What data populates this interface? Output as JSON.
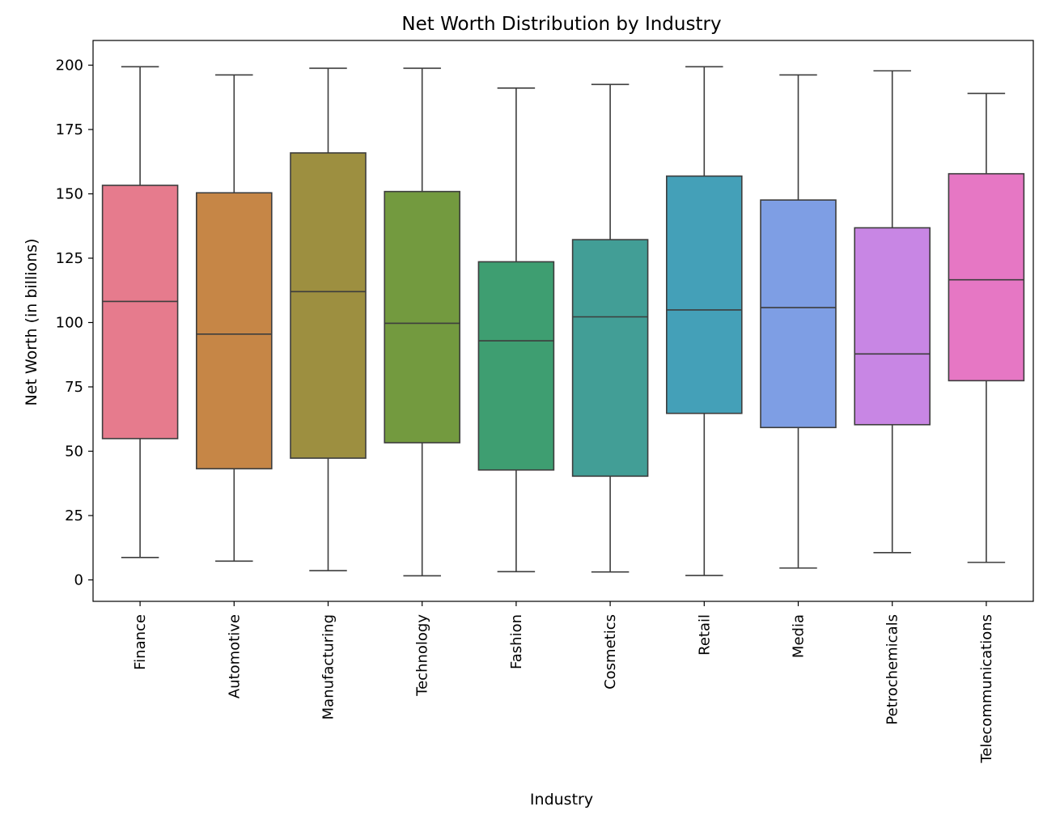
{
  "chart_data": {
    "type": "box",
    "title": "Net Worth Distribution by Industry",
    "xlabel": "Industry",
    "ylabel": "Net Worth (in billions)",
    "ylim": [
      -8,
      210
    ],
    "yticks": [
      "0",
      "25",
      "50",
      "75",
      "100",
      "125",
      "150",
      "175",
      "200"
    ],
    "ytick_values": [
      0,
      25,
      50,
      75,
      100,
      125,
      150,
      175,
      200
    ],
    "grid": false,
    "legend": "none",
    "categories": [
      "Finance",
      "Automotive",
      "Manufacturing",
      "Technology",
      "Fashion",
      "Cosmetics",
      "Retail",
      "Media",
      "Petrochemicals",
      "Telecommunications"
    ],
    "series": [
      {
        "category": "Finance",
        "whisker_low": 8.7,
        "q1": 54.9,
        "median": 108.2,
        "q3": 153.3,
        "whisker_high": 199.4,
        "color": "#e67b8d"
      },
      {
        "category": "Automotive",
        "whisker_low": 7.3,
        "q1": 43.2,
        "median": 95.5,
        "q3": 150.4,
        "whisker_high": 196.2,
        "color": "#c68646"
      },
      {
        "category": "Manufacturing",
        "whisker_low": 3.6,
        "q1": 47.3,
        "median": 112.0,
        "q3": 165.9,
        "whisker_high": 198.8,
        "color": "#9d8f40"
      },
      {
        "category": "Technology",
        "whisker_low": 1.6,
        "q1": 53.3,
        "median": 99.7,
        "q3": 150.9,
        "whisker_high": 198.8,
        "color": "#739a3f"
      },
      {
        "category": "Fashion",
        "whisker_low": 3.2,
        "q1": 42.7,
        "median": 92.9,
        "q3": 123.6,
        "whisker_high": 191.1,
        "color": "#3e9e71"
      },
      {
        "category": "Cosmetics",
        "whisker_low": 3.1,
        "q1": 40.3,
        "median": 102.2,
        "q3": 132.2,
        "whisker_high": 192.5,
        "color": "#429e96"
      },
      {
        "category": "Retail",
        "whisker_low": 1.7,
        "q1": 64.7,
        "median": 104.9,
        "q3": 156.9,
        "whisker_high": 199.4,
        "color": "#44a0b8"
      },
      {
        "category": "Media",
        "whisker_low": 4.6,
        "q1": 59.2,
        "median": 105.8,
        "q3": 147.6,
        "whisker_high": 196.2,
        "color": "#7e9ee4"
      },
      {
        "category": "Petrochemicals",
        "whisker_low": 10.6,
        "q1": 60.3,
        "median": 87.8,
        "q3": 136.8,
        "whisker_high": 197.8,
        "color": "#c886e4"
      },
      {
        "category": "Telecommunications",
        "whisker_low": 6.8,
        "q1": 77.4,
        "median": 116.6,
        "q3": 157.8,
        "whisker_high": 189.0,
        "color": "#e677c4"
      }
    ]
  }
}
